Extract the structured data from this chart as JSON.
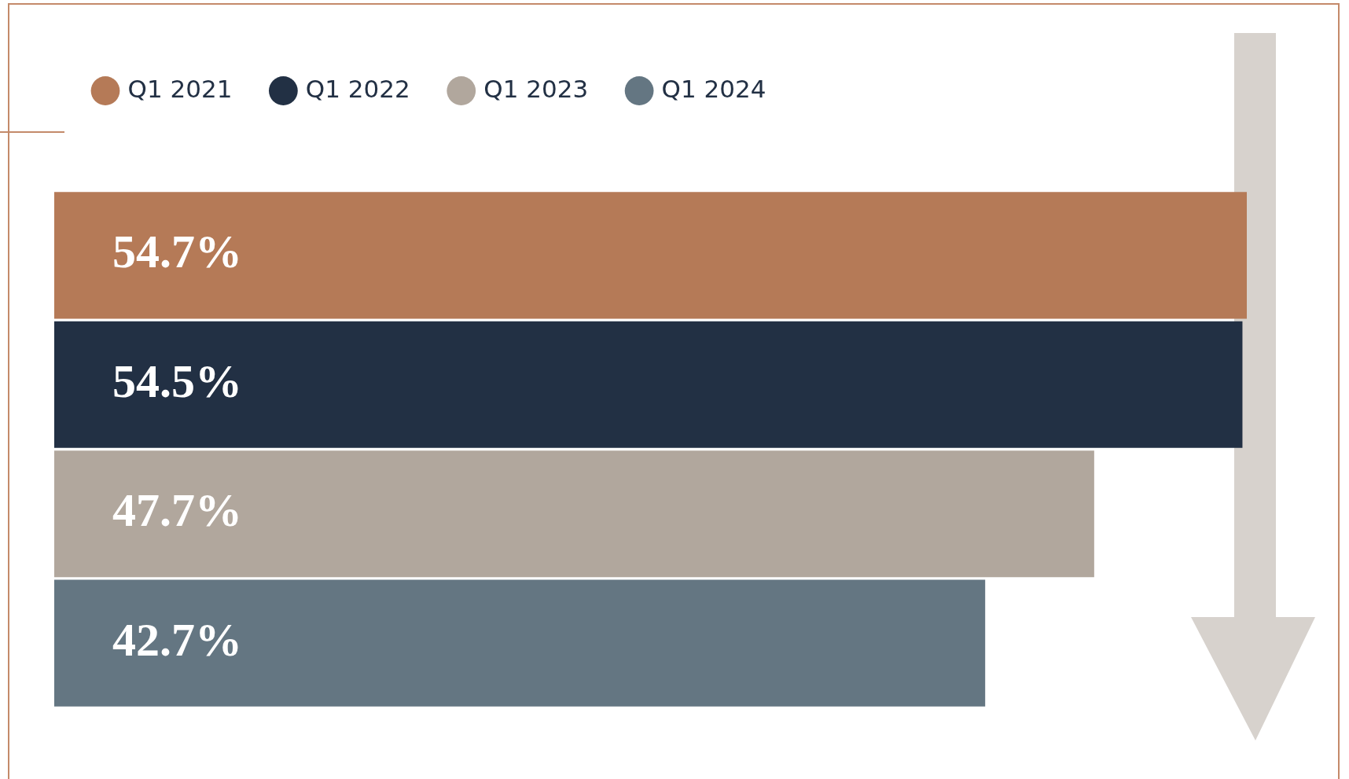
{
  "chart_data": {
    "type": "bar",
    "orientation": "horizontal",
    "categories": [
      null
    ],
    "series": [
      {
        "name": "Q1 2021",
        "color": "#b57a57",
        "values": [
          54.7
        ],
        "value_labels": [
          "54.7%"
        ]
      },
      {
        "name": "Q1 2022",
        "color": "#223044",
        "values": [
          54.5
        ],
        "value_labels": [
          "54.5%"
        ]
      },
      {
        "name": "Q1 2023",
        "color": "#b1a79d",
        "values": [
          47.7
        ],
        "value_labels": [
          "47.7%"
        ]
      },
      {
        "name": "Q1 2024",
        "color": "#647682",
        "values": [
          42.7
        ],
        "value_labels": [
          "42.7%"
        ]
      }
    ],
    "legend": "top left"
  }
}
